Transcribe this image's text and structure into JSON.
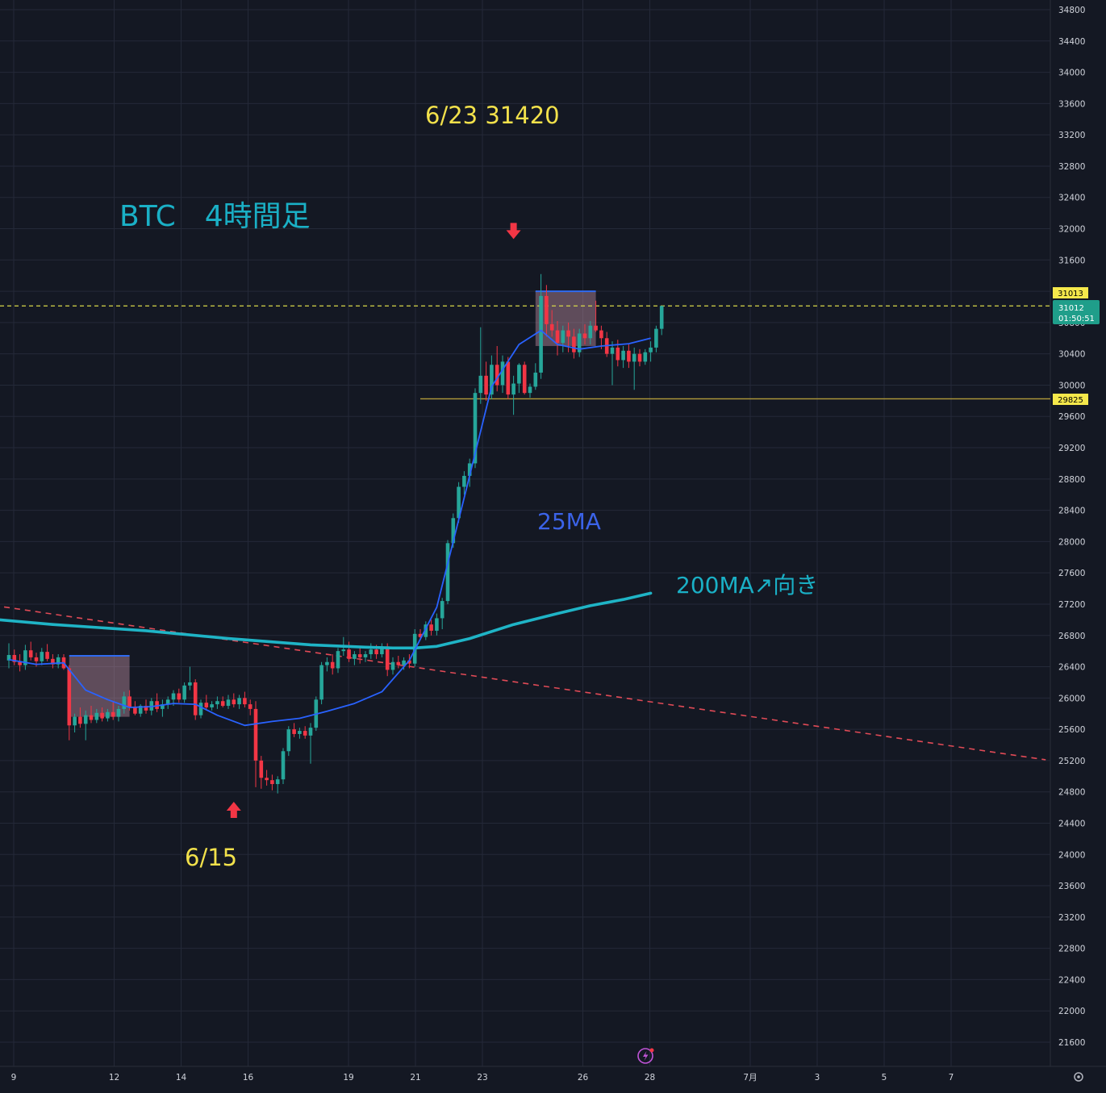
{
  "chart_data": {
    "type": "candlestick",
    "title": "BTC　4時間足",
    "annotations": {
      "high_label": "6/23 31420",
      "low_label": "6/15",
      "ma25_label": "25MA",
      "ma200_label": "200MA↗向き"
    },
    "y_axis": {
      "ylim": [
        21400,
        34900
      ],
      "ticks": [
        21600,
        22000,
        22400,
        22800,
        23200,
        23600,
        24000,
        24400,
        24800,
        25200,
        25600,
        26000,
        26400,
        26800,
        27200,
        27600,
        28000,
        28400,
        28800,
        29200,
        29600,
        30000,
        30400,
        30800,
        31200,
        31600,
        32000,
        32400,
        32800,
        33200,
        33600,
        34000,
        34400,
        34800
      ]
    },
    "x_axis": {
      "ticks": [
        {
          "label": "9",
          "day": 9
        },
        {
          "label": "12",
          "day": 12
        },
        {
          "label": "14",
          "day": 14
        },
        {
          "label": "16",
          "day": 16
        },
        {
          "label": "19",
          "day": 19
        },
        {
          "label": "21",
          "day": 21
        },
        {
          "label": "23",
          "day": 23
        },
        {
          "label": "26",
          "day": 26
        },
        {
          "label": "28",
          "day": 28
        },
        {
          "label": "7月",
          "day": 31
        },
        {
          "label": "3",
          "day": 33
        },
        {
          "label": "5",
          "day": 35
        },
        {
          "label": "7",
          "day": 37
        }
      ]
    },
    "price_tags": {
      "last_price": "31013",
      "current_price": "31012",
      "countdown": "01:50:51",
      "support_level": "29825"
    },
    "levels": {
      "last_price_value": 31013,
      "support_value": 29825
    },
    "candles": [
      [
        26480,
        26700,
        26380,
        26550
      ],
      [
        26550,
        26620,
        26420,
        26460
      ],
      [
        26460,
        26560,
        26340,
        26420
      ],
      [
        26420,
        26680,
        26360,
        26610
      ],
      [
        26610,
        26720,
        26480,
        26520
      ],
      [
        26520,
        26580,
        26400,
        26470
      ],
      [
        26470,
        26640,
        26420,
        26590
      ],
      [
        26590,
        26690,
        26470,
        26500
      ],
      [
        26500,
        26560,
        26380,
        26430
      ],
      [
        26430,
        26560,
        26380,
        26520
      ],
      [
        26520,
        26560,
        26360,
        26380
      ],
      [
        26380,
        26420,
        25460,
        25650
      ],
      [
        25650,
        25800,
        25560,
        25760
      ],
      [
        25760,
        25880,
        25620,
        25670
      ],
      [
        25670,
        25840,
        25460,
        25780
      ],
      [
        25780,
        25900,
        25680,
        25720
      ],
      [
        25720,
        25860,
        25680,
        25810
      ],
      [
        25810,
        25880,
        25700,
        25740
      ],
      [
        25740,
        25860,
        25700,
        25820
      ],
      [
        25820,
        25960,
        25720,
        25760
      ],
      [
        25760,
        25900,
        25700,
        25860
      ],
      [
        25860,
        26080,
        25800,
        26020
      ],
      [
        26020,
        26100,
        25840,
        25880
      ],
      [
        25880,
        25960,
        25780,
        25800
      ],
      [
        25800,
        25920,
        25760,
        25900
      ],
      [
        25900,
        25980,
        25800,
        25840
      ],
      [
        25840,
        26000,
        25780,
        25960
      ],
      [
        25960,
        26060,
        25820,
        25860
      ],
      [
        25860,
        25980,
        25760,
        25920
      ],
      [
        25920,
        26020,
        25860,
        25980
      ],
      [
        25980,
        26100,
        25900,
        26060
      ],
      [
        26060,
        26120,
        25940,
        25980
      ],
      [
        25980,
        26200,
        25940,
        26160
      ],
      [
        26160,
        26400,
        26100,
        26200
      ],
      [
        26200,
        26240,
        25720,
        25780
      ],
      [
        25780,
        25980,
        25740,
        25940
      ],
      [
        25940,
        26040,
        25840,
        25880
      ],
      [
        25880,
        25960,
        25840,
        25920
      ],
      [
        25920,
        26020,
        25860,
        25960
      ],
      [
        25960,
        26020,
        25880,
        25900
      ],
      [
        25900,
        26040,
        25860,
        25980
      ],
      [
        25980,
        26060,
        25880,
        25920
      ],
      [
        25920,
        26040,
        25860,
        26000
      ],
      [
        26000,
        26080,
        25880,
        25920
      ],
      [
        25920,
        25980,
        25780,
        25860
      ],
      [
        25860,
        25960,
        24860,
        25200
      ],
      [
        25200,
        25260,
        24840,
        24980
      ],
      [
        24980,
        25080,
        24880,
        24950
      ],
      [
        24950,
        25020,
        24820,
        24900
      ],
      [
        24900,
        25000,
        24780,
        24960
      ],
      [
        24960,
        25360,
        24900,
        25320
      ],
      [
        25320,
        25640,
        25260,
        25600
      ],
      [
        25600,
        25680,
        25500,
        25540
      ],
      [
        25540,
        25620,
        25480,
        25580
      ],
      [
        25580,
        25640,
        25480,
        25520
      ],
      [
        25520,
        25680,
        25160,
        25620
      ],
      [
        25620,
        26020,
        25580,
        25980
      ],
      [
        25980,
        26460,
        25920,
        26420
      ],
      [
        26420,
        26520,
        26340,
        26460
      ],
      [
        26460,
        26560,
        26300,
        26380
      ],
      [
        26380,
        26640,
        26320,
        26600
      ],
      [
        26600,
        26780,
        26540,
        26620
      ],
      [
        26620,
        26720,
        26460,
        26500
      ],
      [
        26500,
        26600,
        26420,
        26560
      ],
      [
        26560,
        26640,
        26440,
        26520
      ],
      [
        26520,
        26600,
        26460,
        26560
      ],
      [
        26560,
        26700,
        26500,
        26620
      ],
      [
        26620,
        26680,
        26500,
        26560
      ],
      [
        26560,
        26700,
        26520,
        26660
      ],
      [
        26660,
        26700,
        26280,
        26360
      ],
      [
        26360,
        26520,
        26300,
        26460
      ],
      [
        26460,
        26540,
        26380,
        26420
      ],
      [
        26420,
        26520,
        26360,
        26480
      ],
      [
        26480,
        26560,
        26380,
        26440
      ],
      [
        26440,
        26880,
        26400,
        26820
      ],
      [
        26820,
        26880,
        26740,
        26780
      ],
      [
        26780,
        26980,
        26740,
        26940
      ],
      [
        26940,
        27000,
        26800,
        26860
      ],
      [
        26860,
        27080,
        26800,
        27020
      ],
      [
        27020,
        27280,
        26880,
        27240
      ],
      [
        27240,
        28020,
        27200,
        27980
      ],
      [
        27980,
        28360,
        27920,
        28300
      ],
      [
        28300,
        28760,
        28240,
        28700
      ],
      [
        28700,
        28900,
        28600,
        28840
      ],
      [
        28840,
        29060,
        28700,
        29000
      ],
      [
        29000,
        29960,
        28940,
        29900
      ],
      [
        29900,
        30740,
        29760,
        30120
      ],
      [
        30120,
        30300,
        29800,
        29880
      ],
      [
        29880,
        30380,
        29820,
        30260
      ],
      [
        30260,
        30500,
        29920,
        30000
      ],
      [
        30000,
        30380,
        29900,
        30300
      ],
      [
        30300,
        30360,
        29820,
        29880
      ],
      [
        29880,
        30120,
        29620,
        30020
      ],
      [
        30020,
        30280,
        29900,
        30260
      ],
      [
        30260,
        30300,
        29880,
        29900
      ],
      [
        29900,
        30020,
        29840,
        29980
      ],
      [
        29980,
        30280,
        29940,
        30160
      ],
      [
        30160,
        31420,
        30080,
        31140
      ],
      [
        31140,
        31280,
        30620,
        30780
      ],
      [
        30780,
        30960,
        30620,
        30700
      ],
      [
        30700,
        30820,
        30380,
        30540
      ],
      [
        30540,
        30760,
        30420,
        30700
      ],
      [
        30700,
        30800,
        30420,
        30620
      ],
      [
        30620,
        30720,
        30340,
        30420
      ],
      [
        30420,
        30720,
        30360,
        30660
      ],
      [
        30660,
        30780,
        30520,
        30600
      ],
      [
        30600,
        30820,
        30520,
        30760
      ],
      [
        30760,
        31080,
        30680,
        30700
      ],
      [
        30700,
        30760,
        30460,
        30600
      ],
      [
        30600,
        30680,
        30360,
        30400
      ],
      [
        30400,
        30560,
        30000,
        30480
      ],
      [
        30480,
        30580,
        30240,
        30320
      ],
      [
        30320,
        30500,
        30220,
        30440
      ],
      [
        30440,
        30520,
        30220,
        30300
      ],
      [
        30300,
        30480,
        29940,
        30400
      ],
      [
        30400,
        30460,
        30240,
        30300
      ],
      [
        30300,
        30460,
        30260,
        30420
      ],
      [
        30420,
        30560,
        30300,
        30480
      ],
      [
        30480,
        30760,
        30420,
        30720
      ],
      [
        30720,
        31000,
        30640,
        31013
      ]
    ],
    "ma25": [
      [
        0,
        26490
      ],
      [
        5,
        26430
      ],
      [
        10,
        26450
      ],
      [
        14,
        26100
      ],
      [
        18,
        25980
      ],
      [
        22,
        25880
      ],
      [
        26,
        25890
      ],
      [
        30,
        25930
      ],
      [
        34,
        25920
      ],
      [
        38,
        25780
      ],
      [
        43,
        25650
      ],
      [
        48,
        25700
      ],
      [
        53,
        25740
      ],
      [
        58,
        25830
      ],
      [
        63,
        25930
      ],
      [
        68,
        26080
      ],
      [
        73,
        26480
      ],
      [
        78,
        27160
      ],
      [
        83,
        28560
      ],
      [
        88,
        29980
      ],
      [
        93,
        30520
      ],
      [
        97,
        30700
      ],
      [
        100,
        30520
      ],
      [
        104,
        30460
      ],
      [
        108,
        30500
      ],
      [
        113,
        30530
      ],
      [
        117,
        30600
      ]
    ],
    "ma200": [
      [
        -16,
        27150
      ],
      [
        -5,
        27020
      ],
      [
        8,
        26940
      ],
      [
        25,
        26860
      ],
      [
        40,
        26760
      ],
      [
        55,
        26680
      ],
      [
        65,
        26650
      ],
      [
        70,
        26640
      ],
      [
        74,
        26640
      ],
      [
        78,
        26660
      ],
      [
        84,
        26760
      ],
      [
        92,
        26940
      ],
      [
        100,
        27080
      ],
      [
        106,
        27180
      ],
      [
        112,
        27260
      ],
      [
        117,
        27340
      ]
    ],
    "trendline": {
      "from": [
        -16,
        27320
      ],
      "to": [
        189,
        25210
      ]
    },
    "boxes": [
      {
        "from": 11,
        "to": 22,
        "top": 26540,
        "bottom": 25760
      },
      {
        "from": 96,
        "to": 107,
        "top": 31200,
        "bottom": 30500
      }
    ],
    "support_from": 75,
    "arrows": [
      {
        "index": 92,
        "kind": "down",
        "value": 31960
      },
      {
        "index": 41,
        "kind": "up",
        "value": 24580
      }
    ],
    "colors": {
      "background": "#141823",
      "grid": "#242938",
      "up": "#26a69a",
      "down": "#f23645",
      "ma25": "#2962ff",
      "ma200": "#1fb4c6",
      "trendline": "#e04a56",
      "support": "#b29b3a",
      "last_price": "#d8d84a",
      "title": "#1ab0c6",
      "annotation": "#f2e14b",
      "ma25_label": "#3b63e8"
    }
  }
}
